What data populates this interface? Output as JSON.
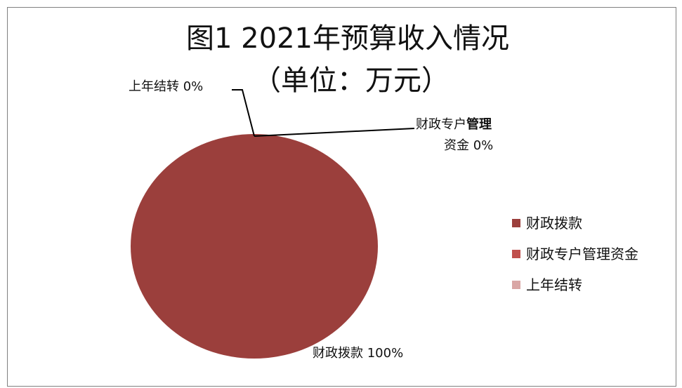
{
  "chart_data": {
    "type": "pie",
    "title": "图1 2021年预算收入情况",
    "subtitle": "（单位：万元）",
    "legend_position": "right",
    "slices": [
      {
        "name": "财政拨款",
        "value": 100,
        "percent_label": "100%",
        "color": "#9B3F3C"
      },
      {
        "name": "财政专户管理资金",
        "value": 0,
        "percent_label": "0%",
        "color": "#C0504D"
      },
      {
        "name": "上年结转",
        "value": 0,
        "percent_label": "0%",
        "color": "#D9A6A5"
      }
    ]
  },
  "labels": {
    "last_year": "上年结转 0%",
    "mgmt_part1": "财政专户",
    "mgmt_part2": "管理",
    "mgmt_line2": "资金 0%",
    "finance": "财政拨款 100%"
  }
}
